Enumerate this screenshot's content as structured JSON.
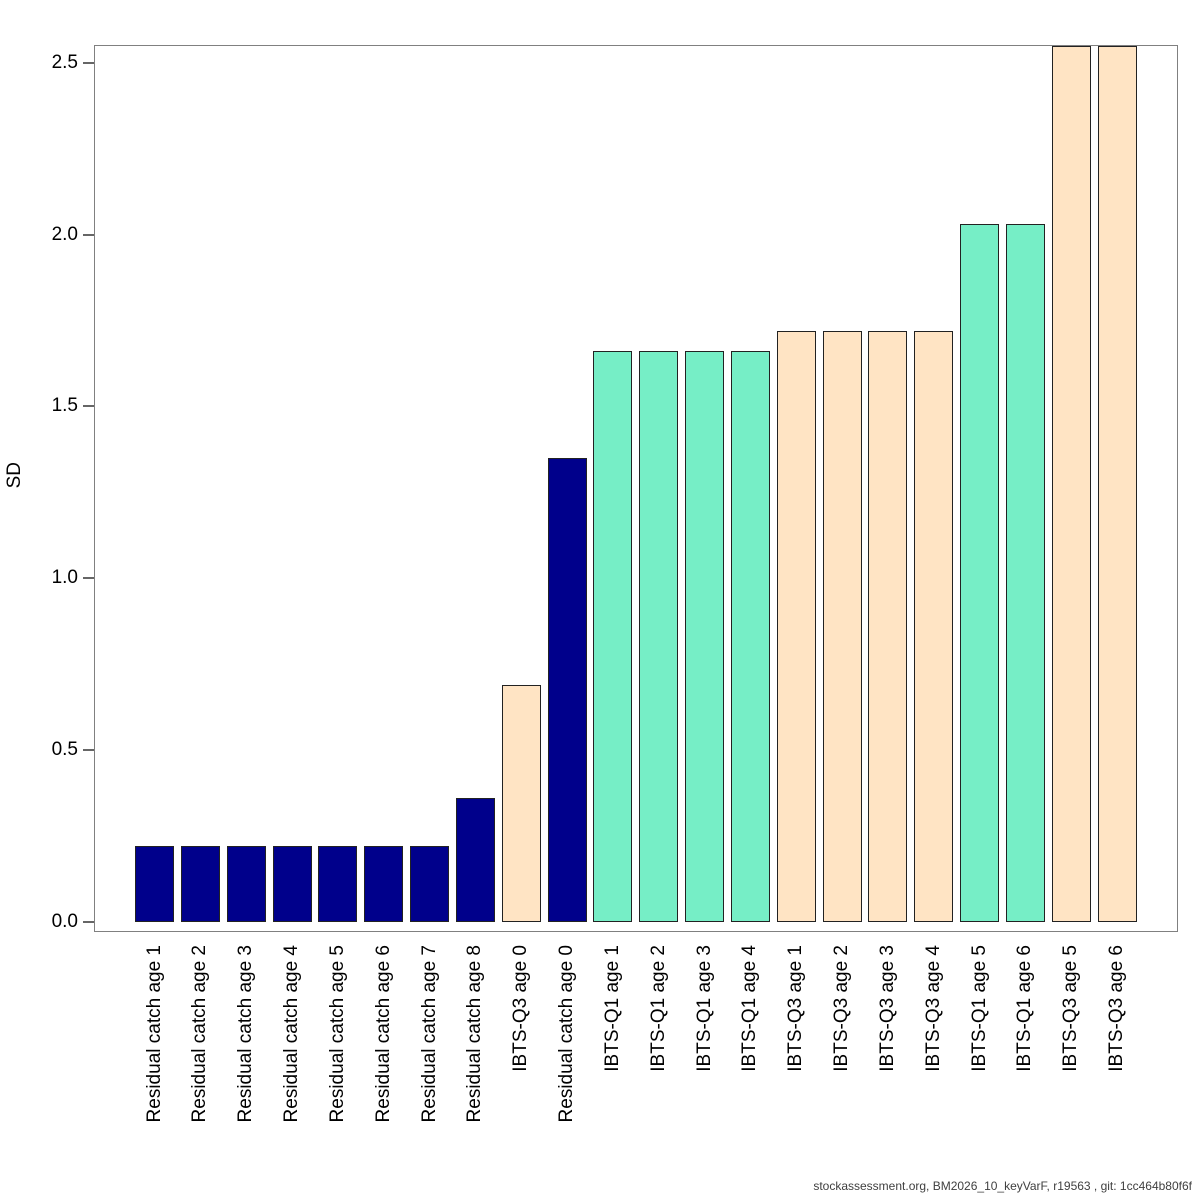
{
  "page": {
    "background": "#FFFFFF"
  },
  "footer": {
    "text": "stockassessment.org, BM2026_10_keyVarF, r19563 , git: 1cc464b80f6f"
  },
  "chart_data": {
    "type": "bar",
    "title": "",
    "xlabel": "",
    "ylabel": "SD",
    "ylim": [
      0,
      2.55
    ],
    "yticks": [
      0.0,
      0.5,
      1.0,
      1.5,
      2.0,
      2.5
    ],
    "ytick_labels": [
      "0.0",
      "0.5",
      "1.0",
      "1.5",
      "2.0",
      "2.5"
    ],
    "grid": false,
    "legend_position": "none",
    "categories": [
      "Residual catch age 1",
      "Residual catch age 2",
      "Residual catch age 3",
      "Residual catch age 4",
      "Residual catch age 5",
      "Residual catch age 6",
      "Residual catch age 7",
      "Residual catch age 8",
      "IBTS-Q3 age 0",
      "Residual catch age 0",
      "IBTS-Q1 age 1",
      "IBTS-Q1 age 2",
      "IBTS-Q1 age 3",
      "IBTS-Q1 age 4",
      "IBTS-Q3 age 1",
      "IBTS-Q3 age 2",
      "IBTS-Q3 age 3",
      "IBTS-Q3 age 4",
      "IBTS-Q1 age 5",
      "IBTS-Q1 age 6",
      "IBTS-Q3 age 5",
      "IBTS-Q3 age 6"
    ],
    "values": [
      0.22,
      0.22,
      0.22,
      0.22,
      0.22,
      0.22,
      0.22,
      0.36,
      0.69,
      1.35,
      1.66,
      1.66,
      1.66,
      1.66,
      1.72,
      1.72,
      1.72,
      1.72,
      2.03,
      2.03,
      2.55,
      2.55
    ],
    "clipped_at_top": [
      false,
      false,
      false,
      false,
      false,
      false,
      false,
      false,
      false,
      false,
      false,
      false,
      false,
      false,
      false,
      false,
      false,
      false,
      false,
      false,
      true,
      true
    ],
    "bar_colors": [
      "#00008B",
      "#00008B",
      "#00008B",
      "#00008B",
      "#00008B",
      "#00008B",
      "#00008B",
      "#00008B",
      "#FFE4C4",
      "#00008B",
      "#76EEC6",
      "#76EEC6",
      "#76EEC6",
      "#76EEC6",
      "#FFE4C4",
      "#FFE4C4",
      "#FFE4C4",
      "#FFE4C4",
      "#76EEC6",
      "#76EEC6",
      "#FFE4C4",
      "#FFE4C4"
    ],
    "color_groups": {
      "residual_catch": "#00008B",
      "ibts_q1": "#76EEC6",
      "ibts_q3": "#FFE4C4"
    }
  },
  "colors": {
    "bar_border": "#222222",
    "axis_box": "#808080",
    "tick_mark": "#666666",
    "text": "#000000",
    "footer_text": "#404040"
  }
}
